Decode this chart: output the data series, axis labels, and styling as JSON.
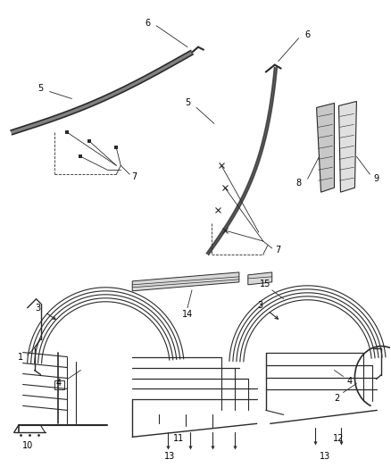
{
  "background_color": "#ffffff",
  "line_color": "#2a2a2a",
  "fig_width": 4.38,
  "fig_height": 5.33,
  "dpi": 100
}
